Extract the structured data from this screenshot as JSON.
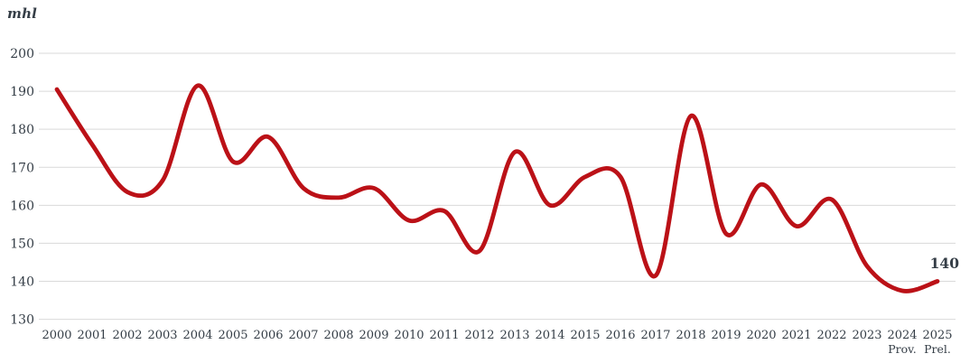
{
  "chart_data": {
    "type": "line",
    "title": "",
    "unit_label": "mhl",
    "xlabel": "",
    "ylabel": "mhl",
    "grid": "horizontal",
    "legend": "none",
    "ylim": [
      130,
      200
    ],
    "y_ticks": [
      200,
      190,
      180,
      170,
      160,
      150,
      140,
      130
    ],
    "categories": [
      "2000",
      "2001",
      "2002",
      "2003",
      "2004",
      "2005",
      "2006",
      "2007",
      "2008",
      "2009",
      "2010",
      "2011",
      "2012",
      "2013",
      "2014",
      "2015",
      "2016",
      "2017",
      "2018",
      "2019",
      "2020",
      "2021",
      "2022",
      "2023",
      "2024",
      "2025"
    ],
    "x_sublabels": [
      "",
      "",
      "",
      "",
      "",
      "",
      "",
      "",
      "",
      "",
      "",
      "",
      "",
      "",
      "",
      "",
      "",
      "",
      "",
      "",
      "",
      "",
      "",
      "",
      "Prov.",
      "Prel."
    ],
    "series": [
      {
        "name": "production-mhl",
        "values": [
          190.5,
          176,
          163.5,
          166.5,
          191.5,
          171.5,
          178,
          164.5,
          162,
          164.5,
          156,
          158.5,
          148,
          174,
          160,
          167.5,
          167.5,
          141.5,
          183.5,
          152.5,
          165.5,
          154.5,
          161.5,
          144,
          137.5,
          140
        ]
      }
    ],
    "end_value_label": "140"
  },
  "colors": {
    "line": "#bb1117",
    "grid": "#d9d9d9",
    "text": "#343d46"
  }
}
